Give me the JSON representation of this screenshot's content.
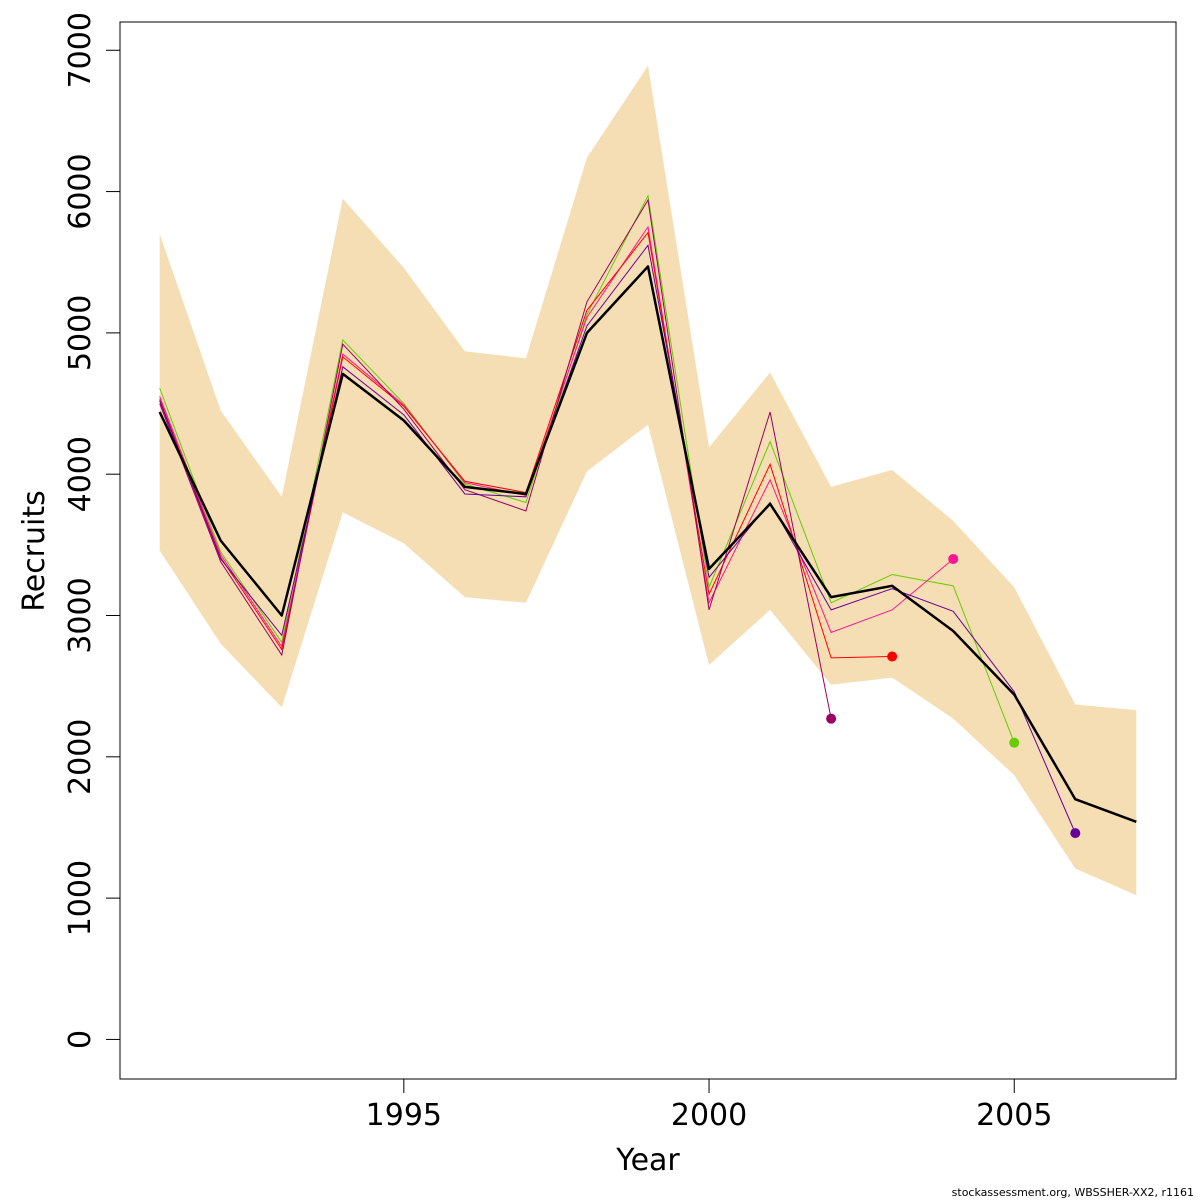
{
  "chart_data": {
    "type": "line",
    "xlabel": "Year",
    "ylabel": "Recruits",
    "xlim": [
      1990.35,
      2007.65
    ],
    "ylim": [
      -280,
      7200
    ],
    "x_ticks": [
      1995,
      2000,
      2005
    ],
    "y_ticks": [
      0,
      1000,
      2000,
      3000,
      4000,
      5000,
      6000,
      7000
    ],
    "grid": false,
    "confidence_band": {
      "color": "#f5deb3",
      "x": [
        1991,
        1992,
        1993,
        1994,
        1995,
        1996,
        1997,
        1998,
        1999,
        2000,
        2001,
        2002,
        2003,
        2004,
        2005,
        2006,
        2007
      ],
      "upper": [
        5700,
        4450,
        3840,
        5950,
        5460,
        4870,
        4820,
        6240,
        6890,
        4190,
        4720,
        3910,
        4030,
        3670,
        3200,
        2370,
        2330
      ],
      "lower": [
        3460,
        2800,
        2350,
        3730,
        3510,
        3130,
        3090,
        4020,
        4350,
        2650,
        3040,
        2510,
        2560,
        2270,
        1870,
        1210,
        1020
      ]
    },
    "main_series": {
      "color": "#000000",
      "x": [
        1991,
        1992,
        1993,
        1994,
        1995,
        1996,
        1997,
        1998,
        1999,
        2000,
        2001,
        2002,
        2003,
        2004,
        2005,
        2006,
        2007
      ],
      "values": [
        4440,
        3530,
        3000,
        4710,
        4380,
        3910,
        3860,
        5000,
        5470,
        3330,
        3790,
        3130,
        3210,
        2890,
        2440,
        1700,
        1540
      ]
    },
    "retrospective_series": [
      {
        "color": "#66cc00",
        "x": [
          1991,
          1992,
          1993,
          1994,
          1995,
          1996,
          1997,
          1998,
          1999,
          2000,
          2001,
          2002,
          2003,
          2004,
          2005
        ],
        "values": [
          4610,
          3450,
          2810,
          4950,
          4500,
          3930,
          3800,
          5130,
          5970,
          3200,
          4230,
          3090,
          3290,
          3210,
          2100
        ],
        "endpoint": true
      },
      {
        "color": "#ff1493",
        "x": [
          1991,
          1992,
          1993,
          1994,
          1995,
          1996,
          1997,
          1998,
          1999,
          2000,
          2001,
          2002,
          2003,
          2004
        ],
        "values": [
          4550,
          3430,
          2780,
          4850,
          4490,
          3940,
          3850,
          5110,
          5750,
          3090,
          3960,
          2880,
          3040,
          3400
        ],
        "endpoint": true
      },
      {
        "color": "#ff0000",
        "x": [
          1991,
          1992,
          1993,
          1994,
          1995,
          1996,
          1997,
          1998,
          1999,
          2000,
          2001,
          2002,
          2003
        ],
        "values": [
          4530,
          3410,
          2760,
          4830,
          4480,
          3950,
          3870,
          5160,
          5710,
          3150,
          4070,
          2700,
          2710
        ],
        "endpoint": true
      },
      {
        "color": "#990066",
        "x": [
          1991,
          1992,
          1993,
          1994,
          1995,
          1996,
          1997,
          1998,
          1999,
          2000,
          2001,
          2002
        ],
        "values": [
          4500,
          3380,
          2720,
          4920,
          4460,
          3890,
          3740,
          5220,
          5940,
          3040,
          4440,
          2270
        ],
        "endpoint": true
      },
      {
        "color": "#660099",
        "x": [
          1991,
          1992,
          1993,
          1994,
          1995,
          1996,
          1997,
          1998,
          1999,
          2000,
          2001,
          2002,
          2003,
          2004,
          2005,
          2006
        ],
        "values": [
          4520,
          3400,
          2860,
          4760,
          4420,
          3860,
          3840,
          5050,
          5620,
          3270,
          3800,
          3040,
          3190,
          3030,
          2460,
          1460
        ],
        "endpoint": true
      }
    ]
  },
  "credit": "stockassessment.org, WBSSHER-XX2, r1161"
}
